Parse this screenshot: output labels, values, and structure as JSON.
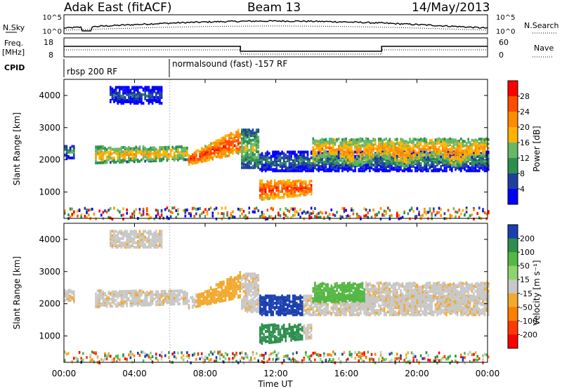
{
  "header": {
    "title": "Adak East (fitACF)",
    "beam": "Beam 13",
    "date": "14/May/2013"
  },
  "strips": {
    "nsky_label": "N.Sky",
    "nsky_ticks": [
      "10^5",
      "10^0"
    ],
    "nsearch_ticks": [
      "10^5",
      "10^0"
    ],
    "nsearch_label": "N.Search",
    "freq_label_1": "Freq.",
    "freq_label_2": "[MHz]",
    "freq_ticks": [
      "18",
      "8"
    ],
    "nave_ticks": [
      "60",
      "0"
    ],
    "nave_label": "Nave",
    "cpid_label": "CPID",
    "cpid_segments": [
      "rbsp 200 RF",
      "normalsound (fast) -157 RF"
    ]
  },
  "chart_data": [
    {
      "type": "heatmap",
      "name": "power",
      "ylabel": "Slant Range [km]",
      "yticks": [
        "4000",
        "3000",
        "2000",
        "1000"
      ],
      "ylim": [
        180,
        4500
      ],
      "colorbar_label": "Power [dB]",
      "colorbar_ticks": [
        "28",
        "24",
        "20",
        "16",
        "12",
        "8",
        "4"
      ],
      "colorbar_colors": [
        "#ff0000",
        "#ff4c00",
        "#ff8c00",
        "#ffb300",
        "#66b766",
        "#2d8f4e",
        "#1f3f9f",
        "#0000ff"
      ]
    },
    {
      "type": "heatmap",
      "name": "velocity",
      "ylabel": "Slant Range [km]",
      "yticks": [
        "4000",
        "3000",
        "2000",
        "1000"
      ],
      "ylim": [
        180,
        4500
      ],
      "colorbar_label": "Velocity [m s⁻¹]",
      "colorbar_ticks": [
        "200",
        "100",
        "50",
        "15",
        "-15",
        "-50",
        "-100",
        "-200"
      ],
      "colorbar_colors": [
        "#1a3fb0",
        "#2d8f4e",
        "#55b744",
        "#8fd36f",
        "#c8c8c8",
        "#f2a92e",
        "#ff7f00",
        "#ff3a00",
        "#ff0000"
      ]
    }
  ],
  "xaxis": {
    "ticks": [
      "00:00",
      "04:00",
      "08:00",
      "12:00",
      "16:00",
      "20:00",
      "00:00"
    ],
    "label": "Time UT"
  }
}
